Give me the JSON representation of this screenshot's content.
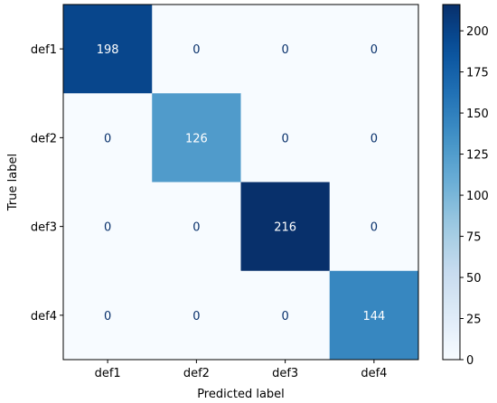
{
  "chart_data": {
    "type": "heatmap",
    "xlabel": "Predicted label",
    "ylabel": "True label",
    "x_categories": [
      "def1",
      "def2",
      "def3",
      "def4"
    ],
    "y_categories": [
      "def1",
      "def2",
      "def3",
      "def4"
    ],
    "values": [
      [
        198,
        0,
        0,
        0
      ],
      [
        0,
        126,
        0,
        0
      ],
      [
        0,
        0,
        216,
        0
      ],
      [
        0,
        0,
        0,
        144
      ]
    ],
    "colorbar": {
      "min": 0,
      "max": 216,
      "ticks": [
        0,
        25,
        50,
        75,
        100,
        125,
        150,
        175,
        200
      ]
    },
    "colormap": "Blues",
    "colors": {
      "low": "#f7fbff",
      "high": "#08306b",
      "text_dark": "#08306b",
      "text_light": "#ffffff"
    }
  }
}
